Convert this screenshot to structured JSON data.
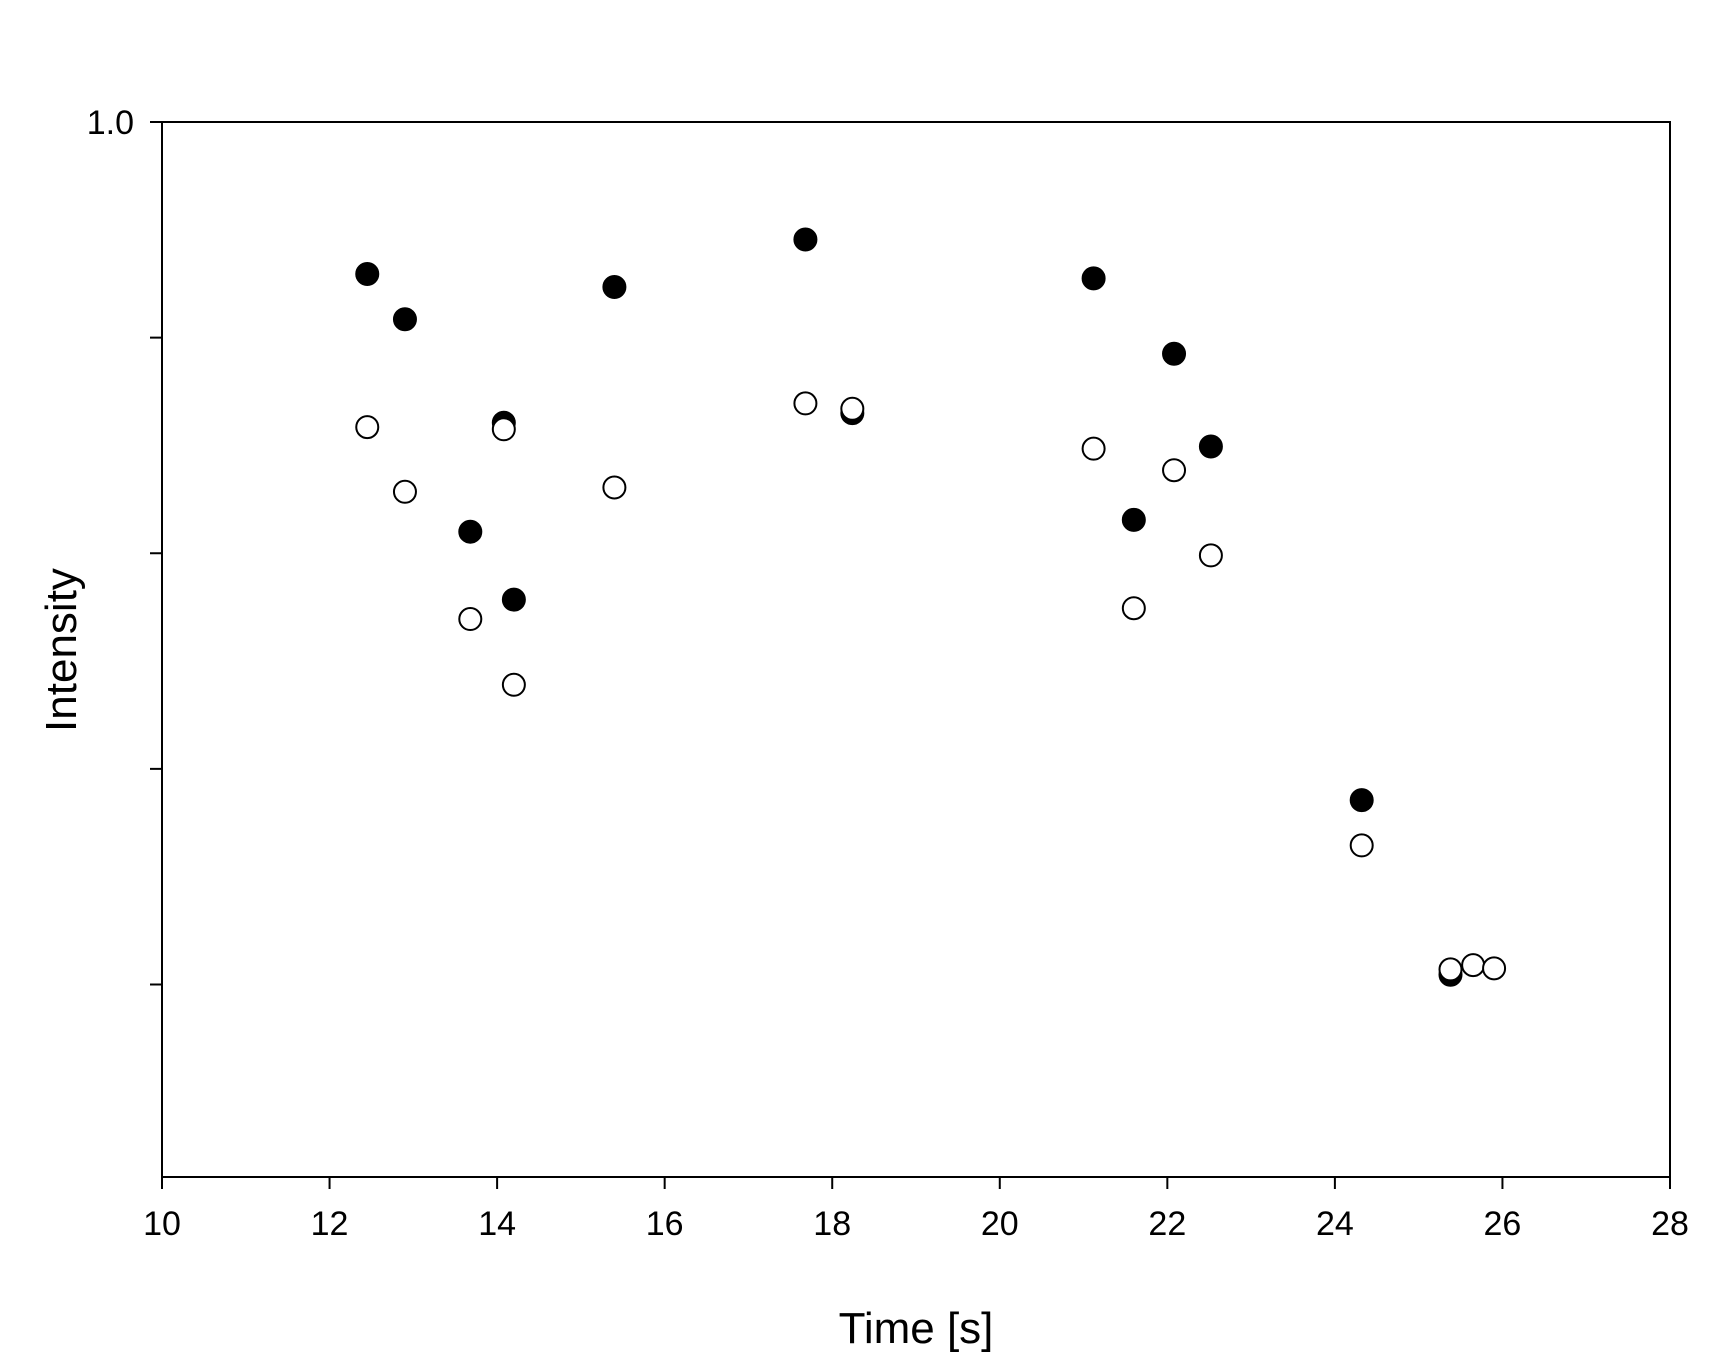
{
  "chart_data": {
    "type": "scatter",
    "title": "",
    "xlabel": "Time [s]",
    "ylabel": "Intensity",
    "xlim": [
      10,
      28
    ],
    "ylim": [
      0.0,
      1.0
    ],
    "x_ticks": [
      10,
      12,
      14,
      16,
      18,
      20,
      22,
      24,
      26,
      28
    ],
    "y_ticks": [
      0.2,
      0.4,
      0.6,
      0.8,
      1.0
    ],
    "y_tick_labels": [
      "",
      "",
      "",
      "",
      "1.0"
    ],
    "grid": false,
    "legend": "none",
    "series": [
      {
        "marker": "filled-circle",
        "color": "#000000",
        "x": [
          12.45,
          12.9,
          13.68,
          14.08,
          14.2,
          15.4,
          17.68,
          18.24,
          21.12,
          21.6,
          22.08,
          22.52,
          24.32,
          25.38
        ],
        "y": [
          0.859,
          0.817,
          0.62,
          0.721,
          0.557,
          0.847,
          0.891,
          0.73,
          0.855,
          0.631,
          0.785,
          0.699,
          0.371,
          0.209
        ]
      },
      {
        "marker": "open-circle",
        "color": "#000000",
        "x": [
          12.45,
          12.9,
          13.68,
          14.08,
          14.2,
          15.4,
          17.68,
          18.24,
          21.12,
          21.6,
          22.08,
          22.52,
          24.32,
          25.38,
          25.65,
          25.9
        ],
        "y": [
          0.717,
          0.657,
          0.539,
          0.715,
          0.478,
          0.661,
          0.739,
          0.734,
          0.697,
          0.549,
          0.677,
          0.598,
          0.329,
          0.214,
          0.218,
          0.215
        ]
      }
    ]
  }
}
